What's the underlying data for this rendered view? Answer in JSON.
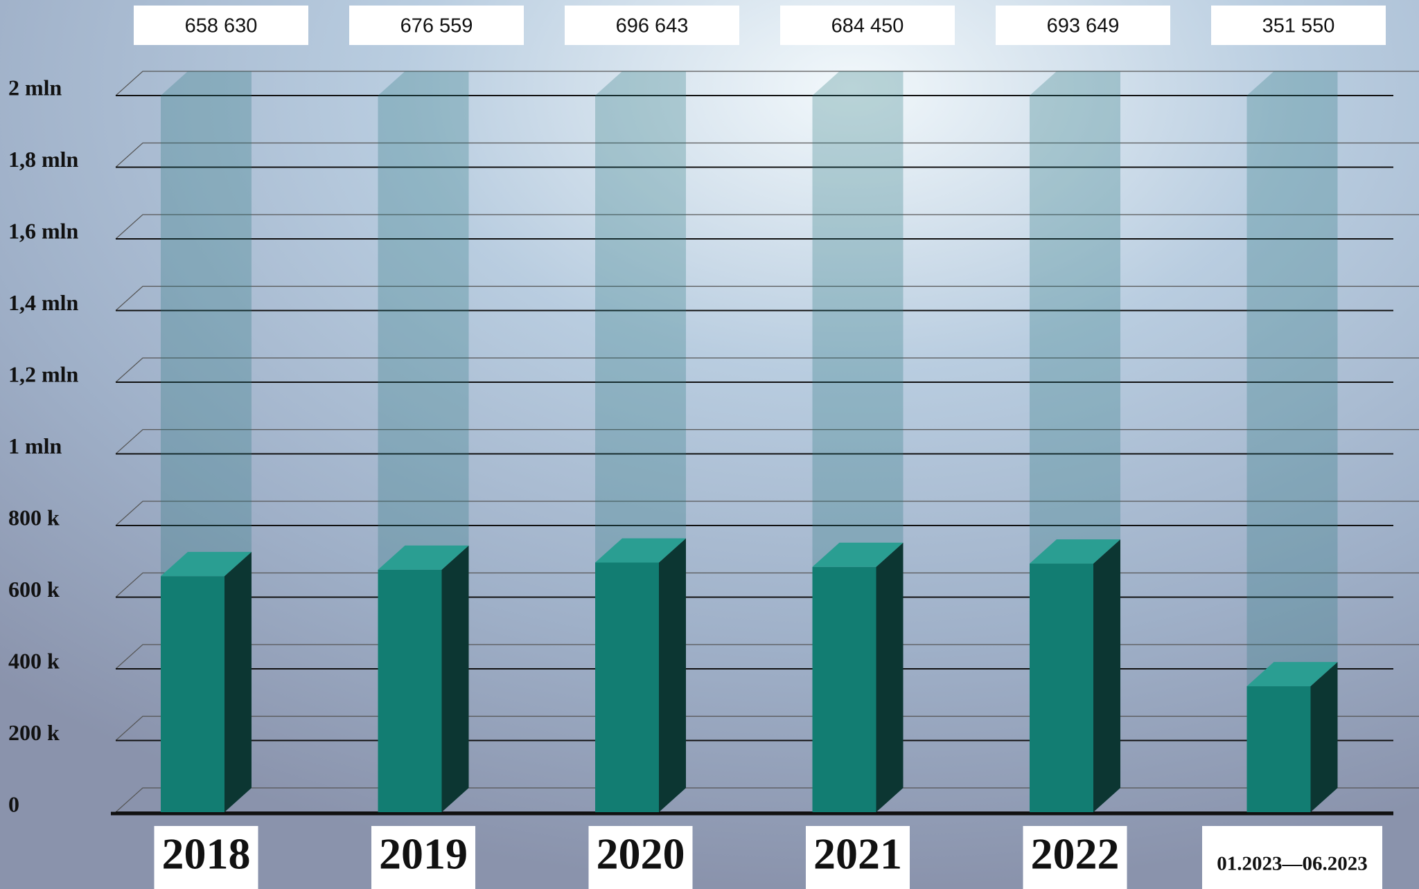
{
  "chart_data": {
    "type": "bar3d",
    "categories": [
      "2018",
      "2019",
      "2020",
      "2021",
      "2022",
      "01.2023—06.2023"
    ],
    "values": [
      658630,
      676559,
      696643,
      684450,
      693649,
      351550
    ],
    "value_labels": [
      "658 630",
      "676 559",
      "696 643",
      "684 450",
      "693 649",
      "351 550"
    ],
    "color": "#127d72",
    "ylim": [
      0,
      2000000
    ],
    "yticks": [
      0,
      {
        "value": 200000,
        "label": "200 k"
      },
      {
        "value": 400000,
        "label": "400 k"
      },
      {
        "value": 600000,
        "label": "600 k"
      },
      {
        "value": 800000,
        "label": "800 k"
      },
      {
        "value": 1000000,
        "label": "1 mln"
      },
      {
        "value": 1200000,
        "label": "1,2 mln"
      },
      {
        "value": 1400000,
        "label": "1,4 mln"
      },
      {
        "value": 1600000,
        "label": "1,6 mln"
      },
      {
        "value": 1800000,
        "label": "1,8 mln"
      },
      {
        "value": 2000000,
        "label": "2 mln"
      }
    ],
    "grid": true
  }
}
